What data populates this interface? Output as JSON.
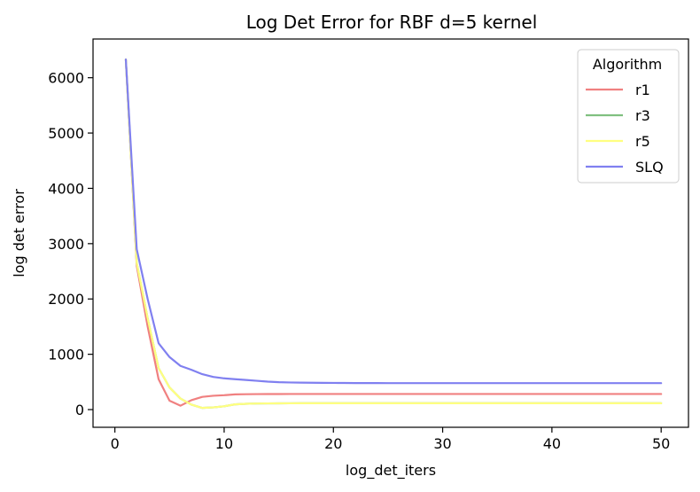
{
  "chart_data": {
    "type": "line",
    "title": "Log Det Error for RBF d=5 kernel",
    "xlabel": "log_det_iters",
    "ylabel": "log det error",
    "xlim": [
      -2,
      52.5
    ],
    "ylim": [
      -320,
      6700
    ],
    "xticks": [
      0,
      10,
      20,
      30,
      40,
      50
    ],
    "yticks": [
      0,
      1000,
      2000,
      3000,
      4000,
      5000,
      6000
    ],
    "grid": false,
    "legend": {
      "title": "Algorithm",
      "placement": "top-right"
    },
    "x": [
      1,
      2,
      3,
      4,
      5,
      6,
      7,
      8,
      9,
      10,
      11,
      12,
      13,
      14,
      15,
      16,
      17,
      18,
      19,
      20,
      21,
      22,
      23,
      24,
      25,
      26,
      27,
      28,
      29,
      30,
      31,
      32,
      33,
      34,
      35,
      36,
      37,
      38,
      39,
      40,
      41,
      42,
      43,
      44,
      45,
      46,
      47,
      48,
      49,
      50
    ],
    "series": [
      {
        "name": "r1",
        "color": "#f08080",
        "values": [
          6330,
          2600,
          1500,
          550,
          160,
          70,
          170,
          230,
          250,
          260,
          275,
          278,
          280,
          281,
          281,
          282,
          282,
          282,
          282,
          282,
          282,
          282,
          282,
          282,
          282,
          282,
          282,
          282,
          282,
          282,
          282,
          282,
          282,
          282,
          282,
          282,
          282,
          282,
          282,
          282,
          282,
          282,
          282,
          282,
          282,
          282,
          282,
          282,
          282,
          282
        ]
      },
      {
        "name": "r3",
        "color": "#80c080",
        "values": [
          6330,
          2650,
          1650,
          750,
          400,
          200,
          90,
          30,
          40,
          60,
          95,
          105,
          110,
          112,
          113,
          114,
          115,
          115,
          115,
          115,
          115,
          115,
          115,
          115,
          115,
          115,
          115,
          115,
          115,
          115,
          115,
          115,
          115,
          115,
          115,
          115,
          115,
          115,
          115,
          115,
          115,
          115,
          115,
          115,
          115,
          115,
          115,
          115,
          115,
          115
        ]
      },
      {
        "name": "r5",
        "color": "#ffff80",
        "values": [
          6330,
          2650,
          1650,
          750,
          400,
          200,
          90,
          30,
          40,
          60,
          95,
          105,
          110,
          112,
          113,
          114,
          115,
          115,
          115,
          115,
          115,
          115,
          115,
          115,
          115,
          115,
          115,
          115,
          115,
          115,
          115,
          115,
          115,
          115,
          115,
          115,
          115,
          115,
          115,
          115,
          115,
          115,
          115,
          115,
          115,
          115,
          115,
          115,
          115,
          115
        ]
      },
      {
        "name": "SLQ",
        "color": "#8080f0",
        "values": [
          6330,
          2900,
          2000,
          1200,
          950,
          790,
          720,
          640,
          590,
          565,
          550,
          535,
          520,
          505,
          495,
          490,
          487,
          485,
          483,
          482,
          481,
          480,
          479,
          479,
          478,
          478,
          478,
          478,
          478,
          478,
          478,
          478,
          478,
          478,
          478,
          478,
          478,
          478,
          478,
          478,
          478,
          478,
          478,
          478,
          478,
          478,
          478,
          478,
          478,
          478
        ]
      }
    ]
  }
}
